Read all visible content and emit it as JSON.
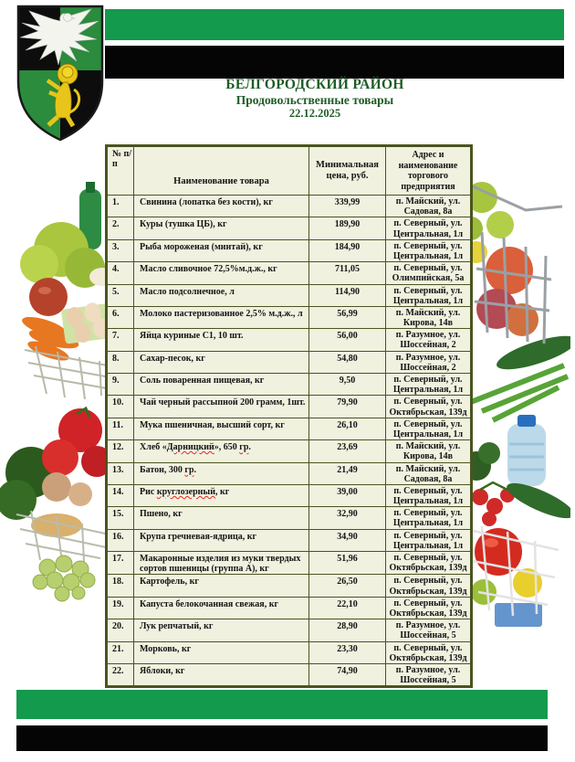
{
  "page": {
    "title": "БЕЛГОРОДСКИЙ РАЙОН",
    "subtitle": "Продовольственные товары",
    "date": "22.12.2025"
  },
  "emblem": {
    "description": "Герб Белгородского района: четверочастный чёрно-зелёный щит, серебряный орёл и золотой лев"
  },
  "colors": {
    "stripe_green": "#149a4c",
    "stripe_black": "#050505",
    "table_border": "#4a551f",
    "cell_background": "#f1f1e0",
    "title_text": "#1e5c26",
    "body_text": "#141414",
    "misspell_underline": "#e8281e"
  },
  "table": {
    "headers": {
      "num": "№ п/п",
      "name": "Наименование товара",
      "price": "Минимальная цена, руб.",
      "address": "Адрес и наименование торгового предприятия"
    },
    "rows": [
      {
        "num": "1.",
        "name_parts": [
          {
            "t": "Свинина (лопатка без кости), кг"
          }
        ],
        "price": "339,99",
        "address": "п. Майский, ул. Садовая, 8а"
      },
      {
        "num": "2.",
        "name_parts": [
          {
            "t": "Куры (тушка ЦБ), кг"
          }
        ],
        "price": "189,90",
        "address": "п. Северный, ул. Центральная, 1л"
      },
      {
        "num": "3.",
        "name_parts": [
          {
            "t": "Рыба мороженая (минтай), кг"
          }
        ],
        "price": "184,90",
        "address": "п. Северный, ул. Центральная, 1л"
      },
      {
        "num": "4.",
        "name_parts": [
          {
            "t": "Масло сливочное 72,5%м.д.ж., кг"
          }
        ],
        "price": "711,05",
        "address": "п. Северный, ул. Олимпийская, 5а"
      },
      {
        "num": "5.",
        "name_parts": [
          {
            "t": "Масло подсолнечное, л"
          }
        ],
        "price": "114,90",
        "address": "п. Северный, ул. Центральная, 1л"
      },
      {
        "num": "6.",
        "name_parts": [
          {
            "t": "Молоко пастеризованное 2,5% м.д.ж., л"
          }
        ],
        "price": "56,99",
        "address": "п. Майский, ул. Кирова, 14в"
      },
      {
        "num": "7.",
        "name_parts": [
          {
            "t": "Яйца куриные С1, 10 шт."
          }
        ],
        "price": "56,00",
        "address": "п. Разумное, ул. Шоссейная, 2"
      },
      {
        "num": "8.",
        "name_parts": [
          {
            "t": "Сахар-песок, кг"
          }
        ],
        "price": "54,80",
        "address": "п. Разумное, ул. Шоссейная, 2"
      },
      {
        "num": "9.",
        "name_parts": [
          {
            "t": "Соль поваренная пищевая, кг"
          }
        ],
        "price": "9,50",
        "address": "п. Северный, ул. Центральная, 1л"
      },
      {
        "num": "10.",
        "name_parts": [
          {
            "t": "Чай черный рассыпной 200 грамм, 1шт."
          }
        ],
        "price": "79,90",
        "address": "п. Северный, ул. Октябрьская, 139д"
      },
      {
        "num": "11.",
        "name_parts": [
          {
            "t": "Мука пшеничная, высший сорт, кг"
          }
        ],
        "price": "26,10",
        "address": "п. Северный, ул. Центральная, 1л"
      },
      {
        "num": "12.",
        "name_parts": [
          {
            "t": "Хлеб «"
          },
          {
            "t": "Дарницкий",
            "u": true
          },
          {
            "t": "», 650 "
          },
          {
            "t": "гр",
            "u": true
          },
          {
            "t": "."
          }
        ],
        "price": "23,69",
        "address": "п. Майский, ул. Кирова, 14в"
      },
      {
        "num": "13.",
        "name_parts": [
          {
            "t": "Батон, 300 "
          },
          {
            "t": "гр",
            "u": true
          },
          {
            "t": "."
          }
        ],
        "price": "21,49",
        "address": "п. Майский, ул. Садовая, 8а"
      },
      {
        "num": "14.",
        "name_parts": [
          {
            "t": "Рис "
          },
          {
            "t": "круглозерный",
            "u": true
          },
          {
            "t": ", кг"
          }
        ],
        "price": "39,00",
        "address": "п. Северный, ул. Центральная, 1л"
      },
      {
        "num": "15.",
        "name_parts": [
          {
            "t": "Пшено, кг"
          }
        ],
        "price": "32,90",
        "address": "п. Северный, ул. Центральная, 1л"
      },
      {
        "num": "16.",
        "name_parts": [
          {
            "t": "Крупа гречневая-ядрица, кг"
          }
        ],
        "price": "34,90",
        "address": "п. Северный, ул. Центральная, 1л"
      },
      {
        "num": "17.",
        "name_parts": [
          {
            "t": "Макаронные изделия из муки твердых сортов пшеницы (группа А), кг"
          }
        ],
        "price": "51,96",
        "address": "п. Северный, ул. Октябрьская, 139д"
      },
      {
        "num": "18.",
        "name_parts": [
          {
            "t": "Картофель, кг"
          }
        ],
        "price": "26,50",
        "address": "п. Северный, ул. Октябрьская, 139д"
      },
      {
        "num": "19.",
        "name_parts": [
          {
            "t": "Капуста белокочанная свежая, кг"
          }
        ],
        "price": "22,10",
        "address": "п. Северный, ул. Октябрьская, 139д"
      },
      {
        "num": "20.",
        "name_parts": [
          {
            "t": "Лук репчатый, кг"
          }
        ],
        "price": "28,90",
        "address": "п. Разумное, ул. Шоссейная, 5"
      },
      {
        "num": "21.",
        "name_parts": [
          {
            "t": "Морковь, кг"
          }
        ],
        "price": "23,30",
        "address": "п. Северный, ул. Октябрьская, 139д"
      },
      {
        "num": "22.",
        "name_parts": [
          {
            "t": "Яблоки, кг"
          }
        ],
        "price": "74,90",
        "address": "п. Разумное, ул. Шоссейная, 5"
      }
    ]
  }
}
